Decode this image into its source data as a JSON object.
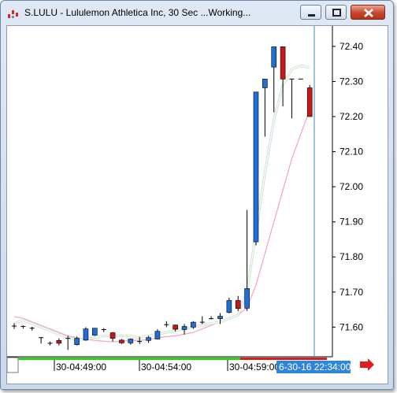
{
  "window": {
    "title": "S.LULU - Lululemon Athletica Inc, 30 Sec ...Working...",
    "icon": "chart-app-icon",
    "controls": [
      "minimize-icon",
      "maximize-icon",
      "close-icon"
    ]
  },
  "colors": {
    "up": "#1f6fd6",
    "down": "#c8161d",
    "wick": "#000000",
    "fast_ma": "#cfe3cf",
    "slow_ma": "#f2a3c6",
    "cursor": "#3a8fb7",
    "label_bg": "#2f86d8",
    "timebar_green": "#2fcf1f",
    "timebar_red": "#d42020",
    "arrow": "#e02020"
  },
  "chart_data": {
    "type": "candlestick",
    "ylim": [
      71.52,
      72.42
    ],
    "y_ticks": [
      "72.40",
      "72.30",
      "72.20",
      "72.10",
      "72.00",
      "71.90",
      "71.80",
      "71.70",
      "71.60"
    ],
    "x_ticks": [
      "30-04:49:00",
      "30-04:54:00",
      "30-04:59:00"
    ],
    "cursor_label": "6-30-16 22:34:00",
    "candles": [
      {
        "o": 71.603,
        "h": 71.611,
        "l": 71.595,
        "c": 71.603
      },
      {
        "o": 71.602,
        "h": 71.605,
        "l": 71.596,
        "c": 71.602
      },
      {
        "o": 71.597,
        "h": 71.601,
        "l": 71.59,
        "c": 71.597
      },
      {
        "o": 71.57,
        "h": 71.571,
        "l": 71.553,
        "c": 71.57
      },
      {
        "o": 71.554,
        "h": 71.559,
        "l": 71.548,
        "c": 71.554
      },
      {
        "o": 71.562,
        "h": 71.568,
        "l": 71.548,
        "c": 71.554
      },
      {
        "o": 71.568,
        "h": 71.575,
        "l": 71.535,
        "c": 71.568
      },
      {
        "o": 71.55,
        "h": 71.573,
        "l": 71.548,
        "c": 71.568
      },
      {
        "o": 71.563,
        "h": 71.6,
        "l": 71.561,
        "c": 71.595
      },
      {
        "o": 71.577,
        "h": 71.597,
        "l": 71.575,
        "c": 71.597
      },
      {
        "o": 71.593,
        "h": 71.597,
        "l": 71.586,
        "c": 71.593
      },
      {
        "o": 71.584,
        "h": 71.586,
        "l": 71.559,
        "c": 71.568
      },
      {
        "o": 71.563,
        "h": 71.566,
        "l": 71.552,
        "c": 71.555
      },
      {
        "o": 71.555,
        "h": 71.568,
        "l": 71.55,
        "c": 71.566
      },
      {
        "o": 71.559,
        "h": 71.572,
        "l": 71.552,
        "c": 71.559
      },
      {
        "o": 71.562,
        "h": 71.575,
        "l": 71.555,
        "c": 71.57
      },
      {
        "o": 71.566,
        "h": 71.594,
        "l": 71.565,
        "c": 71.588
      },
      {
        "o": 71.607,
        "h": 71.617,
        "l": 71.6,
        "c": 71.607
      },
      {
        "o": 71.606,
        "h": 71.607,
        "l": 71.588,
        "c": 71.594
      },
      {
        "o": 71.593,
        "h": 71.609,
        "l": 71.579,
        "c": 71.602
      },
      {
        "o": 71.6,
        "h": 71.617,
        "l": 71.595,
        "c": 71.614
      },
      {
        "o": 71.614,
        "h": 71.631,
        "l": 71.609,
        "c": 71.614
      },
      {
        "o": 71.624,
        "h": 71.631,
        "l": 71.622,
        "c": 71.624
      },
      {
        "o": 71.624,
        "h": 71.64,
        "l": 71.609,
        "c": 71.631
      },
      {
        "o": 71.642,
        "h": 71.684,
        "l": 71.639,
        "c": 71.676
      },
      {
        "o": 71.676,
        "h": 71.689,
        "l": 71.646,
        "c": 71.653
      },
      {
        "o": 71.654,
        "h": 71.934,
        "l": 71.646,
        "c": 71.71
      },
      {
        "o": 71.843,
        "h": 72.27,
        "l": 71.833,
        "c": 72.27
      },
      {
        "o": 72.282,
        "h": 72.307,
        "l": 72.143,
        "c": 72.307
      },
      {
        "o": 72.341,
        "h": 72.399,
        "l": 72.212,
        "c": 72.399
      },
      {
        "o": 72.399,
        "h": 72.399,
        "l": 72.229,
        "c": 72.307
      },
      {
        "o": 72.307,
        "h": 72.307,
        "l": 72.195,
        "c": 72.307
      },
      {
        "o": 72.307,
        "h": 72.307,
        "l": 72.307,
        "c": 72.307
      },
      {
        "o": 72.282,
        "h": 72.29,
        "l": 72.2,
        "c": 72.2
      }
    ],
    "fast_ma": [
      71.61,
      71.62,
      71.61,
      71.6,
      71.59,
      71.58,
      71.57,
      71.565,
      71.565,
      71.57,
      71.575,
      71.575,
      71.575,
      71.575,
      71.57,
      71.575,
      71.58,
      71.585,
      71.59,
      71.595,
      71.6,
      71.605,
      71.61,
      71.615,
      71.625,
      71.635,
      71.7,
      71.87,
      72.04,
      72.19,
      72.29,
      72.335,
      72.345,
      72.34
    ],
    "slow_ma": [
      71.63,
      71.625,
      71.615,
      71.605,
      71.595,
      71.585,
      71.575,
      71.57,
      71.565,
      71.562,
      71.56,
      71.558,
      71.56,
      71.562,
      71.562,
      71.565,
      71.57,
      71.573,
      71.575,
      71.58,
      71.585,
      71.595,
      71.605,
      71.615,
      71.625,
      71.635,
      71.655,
      71.72,
      71.81,
      71.9,
      71.99,
      72.08,
      72.15,
      72.22
    ]
  }
}
